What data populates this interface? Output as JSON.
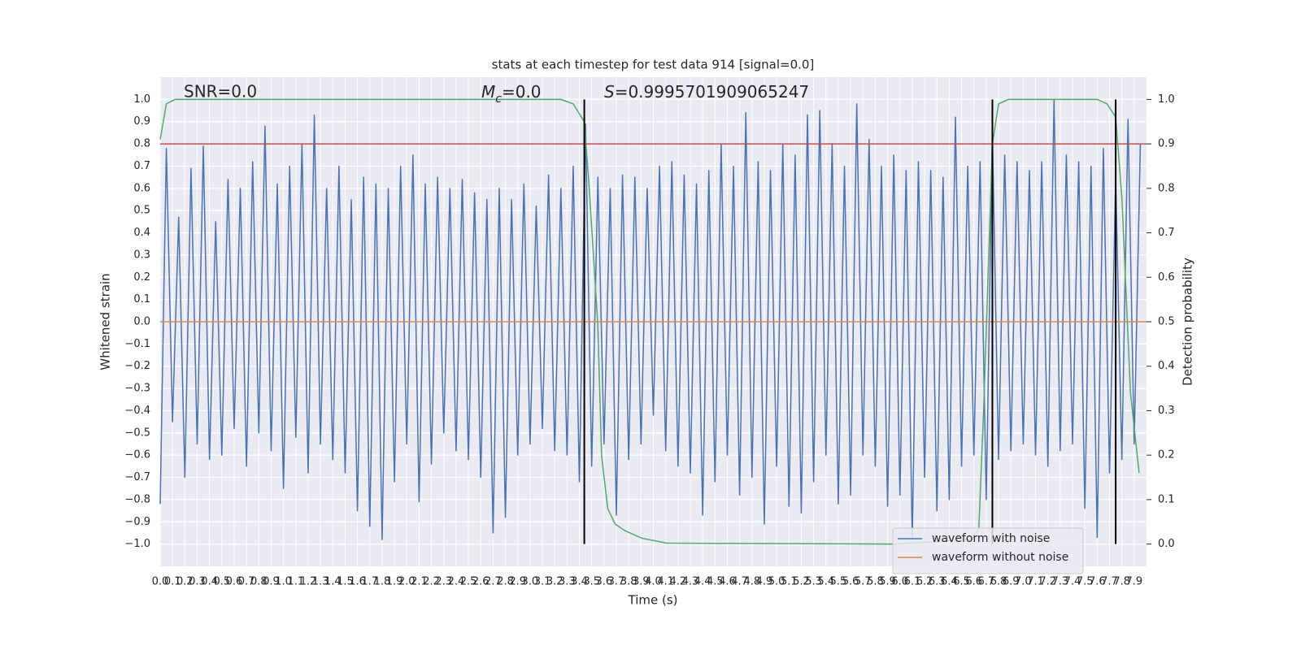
{
  "chart_data": {
    "type": "line",
    "title": "stats at each timestep for test data 914 [signal=0.0]",
    "xlabel": "Time (s)",
    "ylabel": "Whitened strain",
    "y2label": "Detection probability",
    "annotations": [
      {
        "text": "SNR=0.0"
      },
      {
        "symbol": "M",
        "subscript": "c",
        "text": "=0.0"
      },
      {
        "symbol": "S",
        "text": "=0.9995701909065247"
      }
    ],
    "xlim": [
      0,
      8
    ],
    "ylim": [
      -1.1,
      1.1
    ],
    "y2lim": [
      -0.05,
      1.05
    ],
    "xticks": [
      {
        "value": 0,
        "label": "0.0"
      },
      0.1,
      0.2,
      0.3,
      0.4,
      0.5,
      0.6,
      0.7,
      0.8,
      0.9,
      {
        "value": 1,
        "label": "1.0"
      },
      1.1,
      1.2,
      1.3,
      1.4,
      1.5,
      1.6,
      1.7,
      1.8,
      1.9,
      {
        "value": 2,
        "label": "2.0"
      },
      2.1,
      2.2,
      2.3,
      2.4,
      2.5,
      2.6,
      2.7,
      2.8,
      2.9,
      {
        "value": 3,
        "label": "3.0"
      },
      3.1,
      3.2,
      3.3,
      3.4,
      3.5,
      3.6,
      3.7,
      3.8,
      3.9,
      {
        "value": 4,
        "label": "4.0"
      },
      4.1,
      4.2,
      4.3,
      4.4,
      4.5,
      4.6,
      4.7,
      4.8,
      4.9,
      {
        "value": 5,
        "label": "5.0"
      },
      5.1,
      5.2,
      5.3,
      5.4,
      5.5,
      5.6,
      5.7,
      5.8,
      5.9,
      {
        "value": 6,
        "label": "6.0"
      },
      6.1,
      6.2,
      6.3,
      6.4,
      6.5,
      6.6,
      6.7,
      6.8,
      6.9,
      {
        "value": 7,
        "label": "7.0"
      },
      7.1,
      7.2,
      7.3,
      7.4,
      7.5,
      7.6,
      7.7,
      7.8,
      7.9
    ],
    "yticks": [
      {
        "value": 1,
        "label": "1.0"
      },
      0.9,
      0.8,
      0.7,
      0.6,
      0.5,
      0.4,
      0.3,
      0.2,
      0.1,
      {
        "value": 0,
        "label": "0.0"
      },
      {
        "value": -0.1,
        "label": "−0.1"
      },
      {
        "value": -0.2,
        "label": "−0.2"
      },
      {
        "value": -0.3,
        "label": "−0.3"
      },
      {
        "value": -0.4,
        "label": "−0.4"
      },
      {
        "value": -0.5,
        "label": "−0.5"
      },
      {
        "value": -0.6,
        "label": "−0.6"
      },
      {
        "value": -0.7,
        "label": "−0.7"
      },
      {
        "value": -0.8,
        "label": "−0.8"
      },
      {
        "value": -0.9,
        "label": "−0.9"
      },
      {
        "value": -1,
        "label": "−1.0"
      }
    ],
    "y2ticks": [
      {
        "value": 1,
        "label": "1.0"
      },
      0.9,
      0.8,
      0.7,
      0.6,
      0.5,
      0.4,
      0.3,
      0.2,
      0.1,
      {
        "value": 0,
        "label": "0.0"
      }
    ],
    "grid": true,
    "legend": "lower right",
    "series": [
      {
        "name": "waveform with noise",
        "color": "#4c72b0",
        "x": [
          0,
          0.05,
          0.1,
          0.15,
          0.2,
          0.25,
          0.3,
          0.35,
          0.4,
          0.45,
          0.5,
          0.55,
          0.6,
          0.65,
          0.7,
          0.75,
          0.8,
          0.85,
          0.9,
          0.95,
          1,
          1.05,
          1.1,
          1.15,
          1.2,
          1.25,
          1.3,
          1.35,
          1.4,
          1.45,
          1.5,
          1.55,
          1.6,
          1.65,
          1.7,
          1.75,
          1.8,
          1.85,
          1.9,
          1.95,
          2,
          2.05,
          2.1,
          2.15,
          2.2,
          2.25,
          2.3,
          2.35,
          2.4,
          2.45,
          2.5,
          2.55,
          2.6,
          2.65,
          2.7,
          2.75,
          2.8,
          2.85,
          2.9,
          2.95,
          3,
          3.05,
          3.1,
          3.15,
          3.2,
          3.25,
          3.3,
          3.35,
          3.4,
          3.45,
          3.5,
          3.55,
          3.6,
          3.65,
          3.7,
          3.75,
          3.8,
          3.85,
          3.9,
          3.95,
          4,
          4.05,
          4.1,
          4.15,
          4.2,
          4.25,
          4.3,
          4.35,
          4.4,
          4.45,
          4.5,
          4.55,
          4.6,
          4.65,
          4.7,
          4.75,
          4.8,
          4.85,
          4.9,
          4.95,
          5,
          5.05,
          5.1,
          5.15,
          5.2,
          5.25,
          5.3,
          5.35,
          5.4,
          5.45,
          5.5,
          5.55,
          5.6,
          5.65,
          5.7,
          5.75,
          5.8,
          5.85,
          5.9,
          5.95,
          6,
          6.05,
          6.1,
          6.15,
          6.2,
          6.25,
          6.3,
          6.35,
          6.4,
          6.45,
          6.5,
          6.55,
          6.6,
          6.65,
          6.7,
          6.75,
          6.8,
          6.85,
          6.9,
          6.95,
          7,
          7.05,
          7.1,
          7.15,
          7.2,
          7.25,
          7.3,
          7.35,
          7.4,
          7.45,
          7.5,
          7.55,
          7.6,
          7.65,
          7.7,
          7.75,
          7.8,
          7.85,
          7.9,
          7.95
        ],
        "values": [
          -0.82,
          0.78,
          -0.45,
          0.47,
          -0.7,
          0.69,
          -0.55,
          0.79,
          -0.62,
          0.45,
          -0.6,
          0.64,
          -0.48,
          0.6,
          -0.65,
          0.72,
          -0.5,
          0.88,
          -0.58,
          0.62,
          -0.75,
          0.7,
          -0.52,
          0.8,
          -0.68,
          0.93,
          -0.55,
          0.6,
          -0.62,
          0.7,
          -0.68,
          0.55,
          -0.85,
          0.65,
          -0.92,
          0.62,
          -0.98,
          0.6,
          -0.72,
          0.7,
          -0.55,
          0.75,
          -0.81,
          0.62,
          -0.64,
          0.65,
          -0.5,
          0.6,
          -0.58,
          0.64,
          -0.62,
          0.58,
          -0.7,
          0.55,
          -0.95,
          0.6,
          -0.88,
          0.55,
          -0.6,
          0.62,
          -0.55,
          0.52,
          -0.48,
          0.66,
          -0.58,
          0.6,
          -0.6,
          0.7,
          -0.72,
          0.89,
          -0.65,
          0.65,
          -0.55,
          0.6,
          -0.87,
          0.66,
          -0.62,
          0.65,
          -0.55,
          0.6,
          -0.42,
          0.7,
          -0.58,
          0.72,
          -0.65,
          0.66,
          -0.68,
          0.62,
          -0.87,
          0.68,
          -0.72,
          0.8,
          -0.6,
          0.7,
          -0.78,
          0.94,
          -0.7,
          0.72,
          -0.91,
          0.68,
          -0.65,
          0.8,
          -0.83,
          0.75,
          -0.86,
          0.93,
          -0.72,
          0.95,
          -0.6,
          0.8,
          -0.82,
          0.7,
          -0.78,
          0.98,
          -0.6,
          0.82,
          -0.65,
          0.7,
          -0.83,
          0.75,
          -0.78,
          0.68,
          -0.98,
          0.72,
          -0.7,
          0.68,
          -0.85,
          0.65,
          -0.8,
          0.92,
          -0.65,
          0.7,
          -0.6,
          0.72,
          -0.8,
          0.85,
          -0.62,
          0.75,
          -0.58,
          0.72,
          -0.55,
          0.68,
          -0.6,
          0.72,
          -0.65,
          1.0,
          -0.58,
          0.75,
          -0.55,
          0.72,
          -0.84,
          0.7,
          -0.97,
          0.78,
          -0.68,
          0.65,
          -0.62,
          0.91,
          -0.55,
          0.8
        ]
      },
      {
        "name": "waveform without noise",
        "color": "#dd8452",
        "x": [
          0,
          8
        ],
        "values": [
          0,
          0
        ]
      },
      {
        "color": "#55a868",
        "axis": "y2",
        "x": [
          0,
          0.05,
          0.12,
          3.25,
          3.35,
          3.44,
          3.48,
          3.55,
          3.58,
          3.63,
          3.69,
          3.77,
          3.91,
          4.11,
          5.96,
          6.58,
          6.64,
          6.68,
          6.75,
          6.8,
          6.88,
          7.6,
          7.68,
          7.75,
          7.8,
          7.87,
          7.94
        ],
        "values": [
          0.91,
          0.99,
          1.0,
          1.0,
          0.99,
          0.95,
          0.8,
          0.49,
          0.2,
          0.08,
          0.045,
          0.03,
          0.013,
          0.002,
          0.0,
          0.01,
          0.035,
          0.31,
          0.9,
          0.99,
          1.0,
          1.0,
          0.99,
          0.96,
          0.78,
          0.34,
          0.16
        ]
      }
    ],
    "threshold": {
      "value": 0.9,
      "axis": "y2",
      "color": "#c44e52"
    },
    "vlines": {
      "x": [
        3.44,
        6.75,
        7.75
      ],
      "ymin": -1,
      "ymax": 1,
      "color": "#000000"
    }
  }
}
